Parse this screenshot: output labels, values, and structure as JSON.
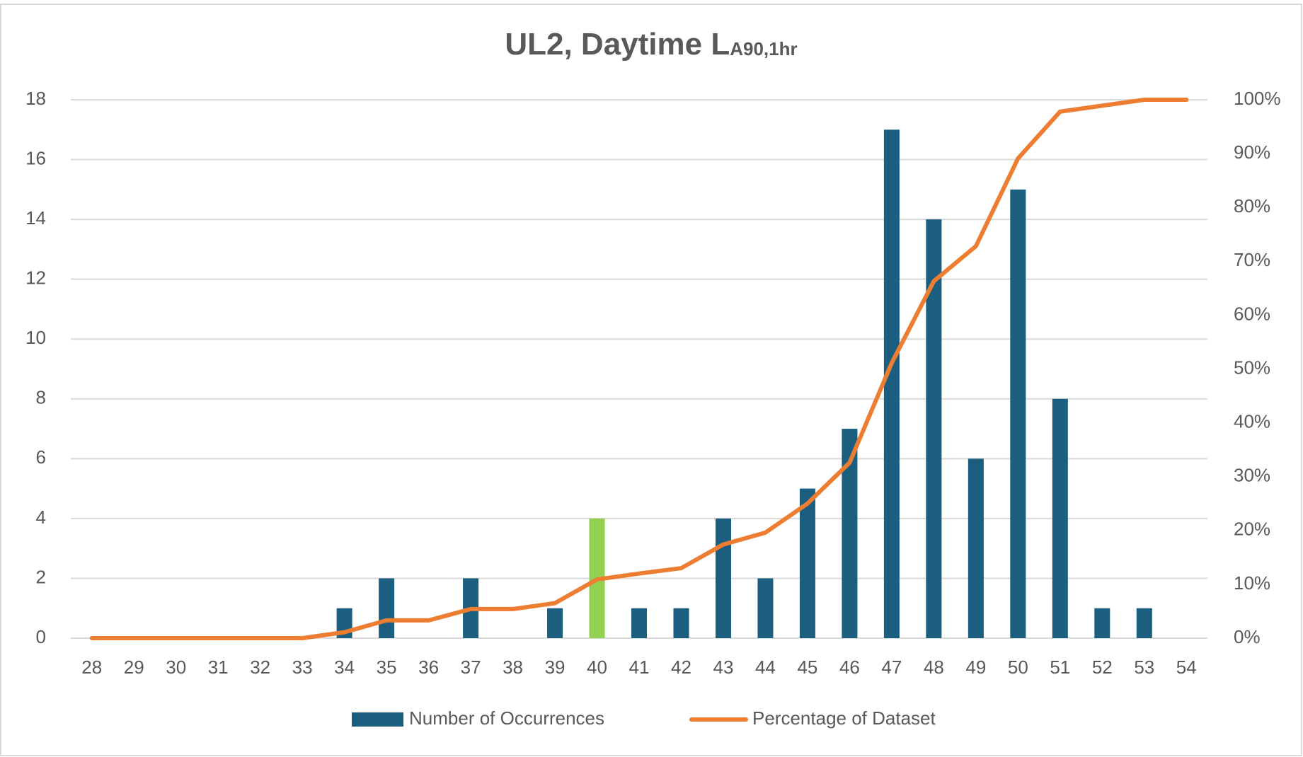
{
  "chart_data": {
    "type": "bar_line",
    "title": "UL2, Daytime L",
    "title_subscript": "A90,1hr",
    "categories": [
      "28",
      "29",
      "30",
      "31",
      "32",
      "33",
      "34",
      "35",
      "36",
      "37",
      "38",
      "39",
      "40",
      "41",
      "42",
      "43",
      "44",
      "45",
      "46",
      "47",
      "48",
      "49",
      "50",
      "51",
      "52",
      "53",
      "54"
    ],
    "series": [
      {
        "name": "Number of Occurrences",
        "type": "bar",
        "color": "#1b5e80",
        "colors": [
          "#1b5e80",
          "#1b5e80",
          "#1b5e80",
          "#1b5e80",
          "#1b5e80",
          "#1b5e80",
          "#1b5e80",
          "#1b5e80",
          "#1b5e80",
          "#1b5e80",
          "#1b5e80",
          "#1b5e80",
          "#92d050",
          "#1b5e80",
          "#1b5e80",
          "#1b5e80",
          "#1b5e80",
          "#1b5e80",
          "#1b5e80",
          "#1b5e80",
          "#1b5e80",
          "#1b5e80",
          "#1b5e80",
          "#1b5e80",
          "#1b5e80",
          "#1b5e80",
          "#1b5e80"
        ],
        "values": [
          0,
          0,
          0,
          0,
          0,
          0,
          1,
          2,
          0,
          2,
          0,
          1,
          4,
          1,
          1,
          4,
          2,
          5,
          7,
          17,
          14,
          6,
          15,
          8,
          1,
          1,
          0
        ]
      },
      {
        "name": "Percentage of Dataset",
        "type": "line",
        "color": "#ed7d31",
        "axis": "y2",
        "values": [
          0,
          0,
          0,
          0,
          0,
          0,
          1.1,
          3.3,
          3.3,
          5.4,
          5.4,
          6.5,
          10.9,
          12.0,
          13.0,
          17.4,
          19.6,
          25.0,
          32.6,
          51.1,
          66.3,
          72.8,
          89.1,
          97.8,
          98.9,
          100,
          100
        ]
      }
    ],
    "ylim": [
      0,
      18
    ],
    "yticks": [
      0,
      2,
      4,
      6,
      8,
      10,
      12,
      14,
      16,
      18
    ],
    "y2lim": [
      0,
      100
    ],
    "y2ticks": [
      {
        "value": 0,
        "label": "0%"
      },
      {
        "value": 10,
        "label": "10%"
      },
      {
        "value": 20,
        "label": "20%"
      },
      {
        "value": 30,
        "label": "30%"
      },
      {
        "value": 40,
        "label": "40%"
      },
      {
        "value": 50,
        "label": "50%"
      },
      {
        "value": 60,
        "label": "60%"
      },
      {
        "value": 70,
        "label": "70%"
      },
      {
        "value": 80,
        "label": "80%"
      },
      {
        "value": 90,
        "label": "90%"
      },
      {
        "value": 100,
        "label": "100%"
      }
    ],
    "grid": true,
    "legend": "bottom"
  }
}
